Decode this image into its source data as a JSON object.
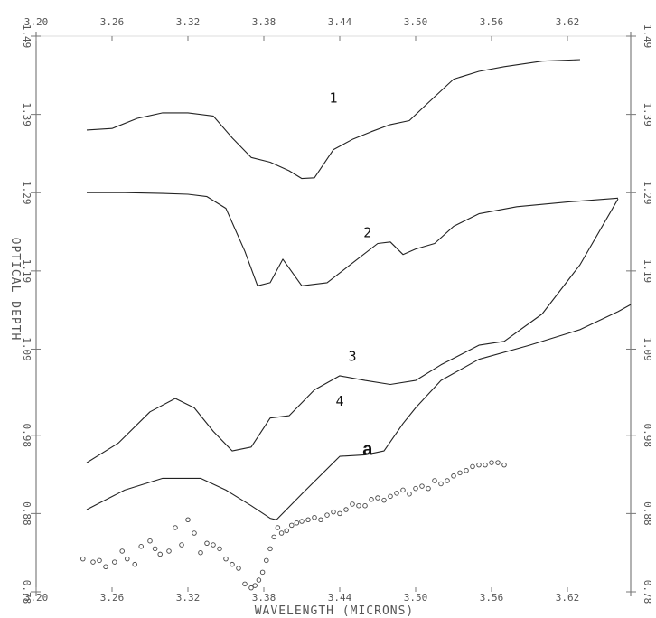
{
  "chart_data": {
    "type": "line",
    "title": "",
    "xlabel": "WAVELENGTH (MICRONS)",
    "ylabel": "OPTICAL DEPTH",
    "xlim": [
      3.2,
      3.67
    ],
    "ylim": [
      0.78,
      1.49
    ],
    "x_ticks": [
      "3.20",
      "3.26",
      "3.32",
      "3.38",
      "3.44",
      "3.50",
      "3.56",
      "3.62"
    ],
    "y_ticks": [
      "0.78",
      "0.88",
      "0.98",
      "1.09",
      "1.19",
      "1.29",
      "1.39",
      "1.49"
    ],
    "grid": false,
    "annotation": "a",
    "series": [
      {
        "name": "1",
        "x": [
          3.24,
          3.26,
          3.28,
          3.3,
          3.32,
          3.34,
          3.355,
          3.37,
          3.385,
          3.4,
          3.41,
          3.42,
          3.435,
          3.45,
          3.465,
          3.48,
          3.495,
          3.51,
          3.53,
          3.55,
          3.57,
          3.6,
          3.63
        ],
        "y": [
          1.37,
          1.372,
          1.385,
          1.392,
          1.392,
          1.388,
          1.36,
          1.335,
          1.329,
          1.318,
          1.308,
          1.309,
          1.345,
          1.358,
          1.368,
          1.377,
          1.382,
          1.405,
          1.435,
          1.445,
          1.451,
          1.458,
          1.46
        ]
      },
      {
        "name": "2",
        "x": [
          3.24,
          3.27,
          3.3,
          3.32,
          3.335,
          3.35,
          3.365,
          3.375,
          3.385,
          3.395,
          3.41,
          3.43,
          3.45,
          3.47,
          3.48,
          3.49,
          3.5,
          3.515,
          3.53,
          3.55,
          3.58,
          3.62,
          3.66
        ],
        "y": [
          1.29,
          1.29,
          1.289,
          1.288,
          1.285,
          1.27,
          1.215,
          1.171,
          1.175,
          1.205,
          1.171,
          1.175,
          1.2,
          1.225,
          1.227,
          1.211,
          1.218,
          1.225,
          1.247,
          1.263,
          1.272,
          1.278,
          1.283
        ]
      },
      {
        "name": "3",
        "x": [
          3.24,
          3.265,
          3.29,
          3.31,
          3.325,
          3.34,
          3.355,
          3.37,
          3.385,
          3.4,
          3.42,
          3.44,
          3.46,
          3.48,
          3.5,
          3.52,
          3.55,
          3.57,
          3.6,
          3.63,
          3.66
        ],
        "y": [
          0.945,
          0.97,
          1.01,
          1.027,
          1.015,
          0.985,
          0.96,
          0.965,
          1.002,
          1.005,
          1.038,
          1.056,
          1.05,
          1.045,
          1.05,
          1.07,
          1.095,
          1.1,
          1.135,
          1.198,
          1.282
        ]
      },
      {
        "name": "4",
        "x": [
          3.24,
          3.27,
          3.3,
          3.33,
          3.35,
          3.37,
          3.385,
          3.39,
          3.41,
          3.44,
          3.46,
          3.475,
          3.49,
          3.5,
          3.52,
          3.55,
          3.59,
          3.63,
          3.66,
          3.67
        ],
        "y": [
          0.885,
          0.91,
          0.925,
          0.925,
          0.91,
          0.89,
          0.874,
          0.872,
          0.905,
          0.953,
          0.955,
          0.96,
          0.995,
          1.015,
          1.05,
          1.077,
          1.095,
          1.115,
          1.138,
          1.147
        ]
      },
      {
        "name": "a",
        "style": "markers",
        "x": [
          3.237,
          3.245,
          3.25,
          3.255,
          3.262,
          3.268,
          3.272,
          3.278,
          3.283,
          3.29,
          3.294,
          3.298,
          3.305,
          3.31,
          3.315,
          3.32,
          3.325,
          3.33,
          3.335,
          3.34,
          3.345,
          3.35,
          3.355,
          3.36,
          3.365,
          3.37,
          3.373,
          3.376,
          3.379,
          3.382,
          3.385,
          3.388,
          3.391,
          3.394,
          3.398,
          3.402,
          3.406,
          3.41,
          3.415,
          3.42,
          3.425,
          3.43,
          3.435,
          3.44,
          3.445,
          3.45,
          3.455,
          3.46,
          3.465,
          3.47,
          3.475,
          3.48,
          3.485,
          3.49,
          3.495,
          3.5,
          3.505,
          3.51,
          3.515,
          3.52,
          3.525,
          3.53,
          3.535,
          3.54,
          3.545,
          3.55,
          3.555,
          3.56,
          3.565,
          3.57
        ],
        "y": [
          0.822,
          0.818,
          0.82,
          0.812,
          0.818,
          0.832,
          0.822,
          0.815,
          0.838,
          0.845,
          0.835,
          0.828,
          0.832,
          0.862,
          0.84,
          0.872,
          0.855,
          0.83,
          0.842,
          0.84,
          0.835,
          0.822,
          0.815,
          0.81,
          0.79,
          0.785,
          0.788,
          0.795,
          0.805,
          0.82,
          0.835,
          0.85,
          0.862,
          0.855,
          0.858,
          0.865,
          0.868,
          0.87,
          0.872,
          0.875,
          0.872,
          0.878,
          0.882,
          0.88,
          0.885,
          0.892,
          0.89,
          0.89,
          0.898,
          0.9,
          0.897,
          0.902,
          0.906,
          0.91,
          0.905,
          0.912,
          0.915,
          0.912,
          0.922,
          0.918,
          0.922,
          0.928,
          0.932,
          0.935,
          0.94,
          0.942,
          0.942,
          0.945,
          0.945,
          0.942
        ]
      }
    ]
  }
}
